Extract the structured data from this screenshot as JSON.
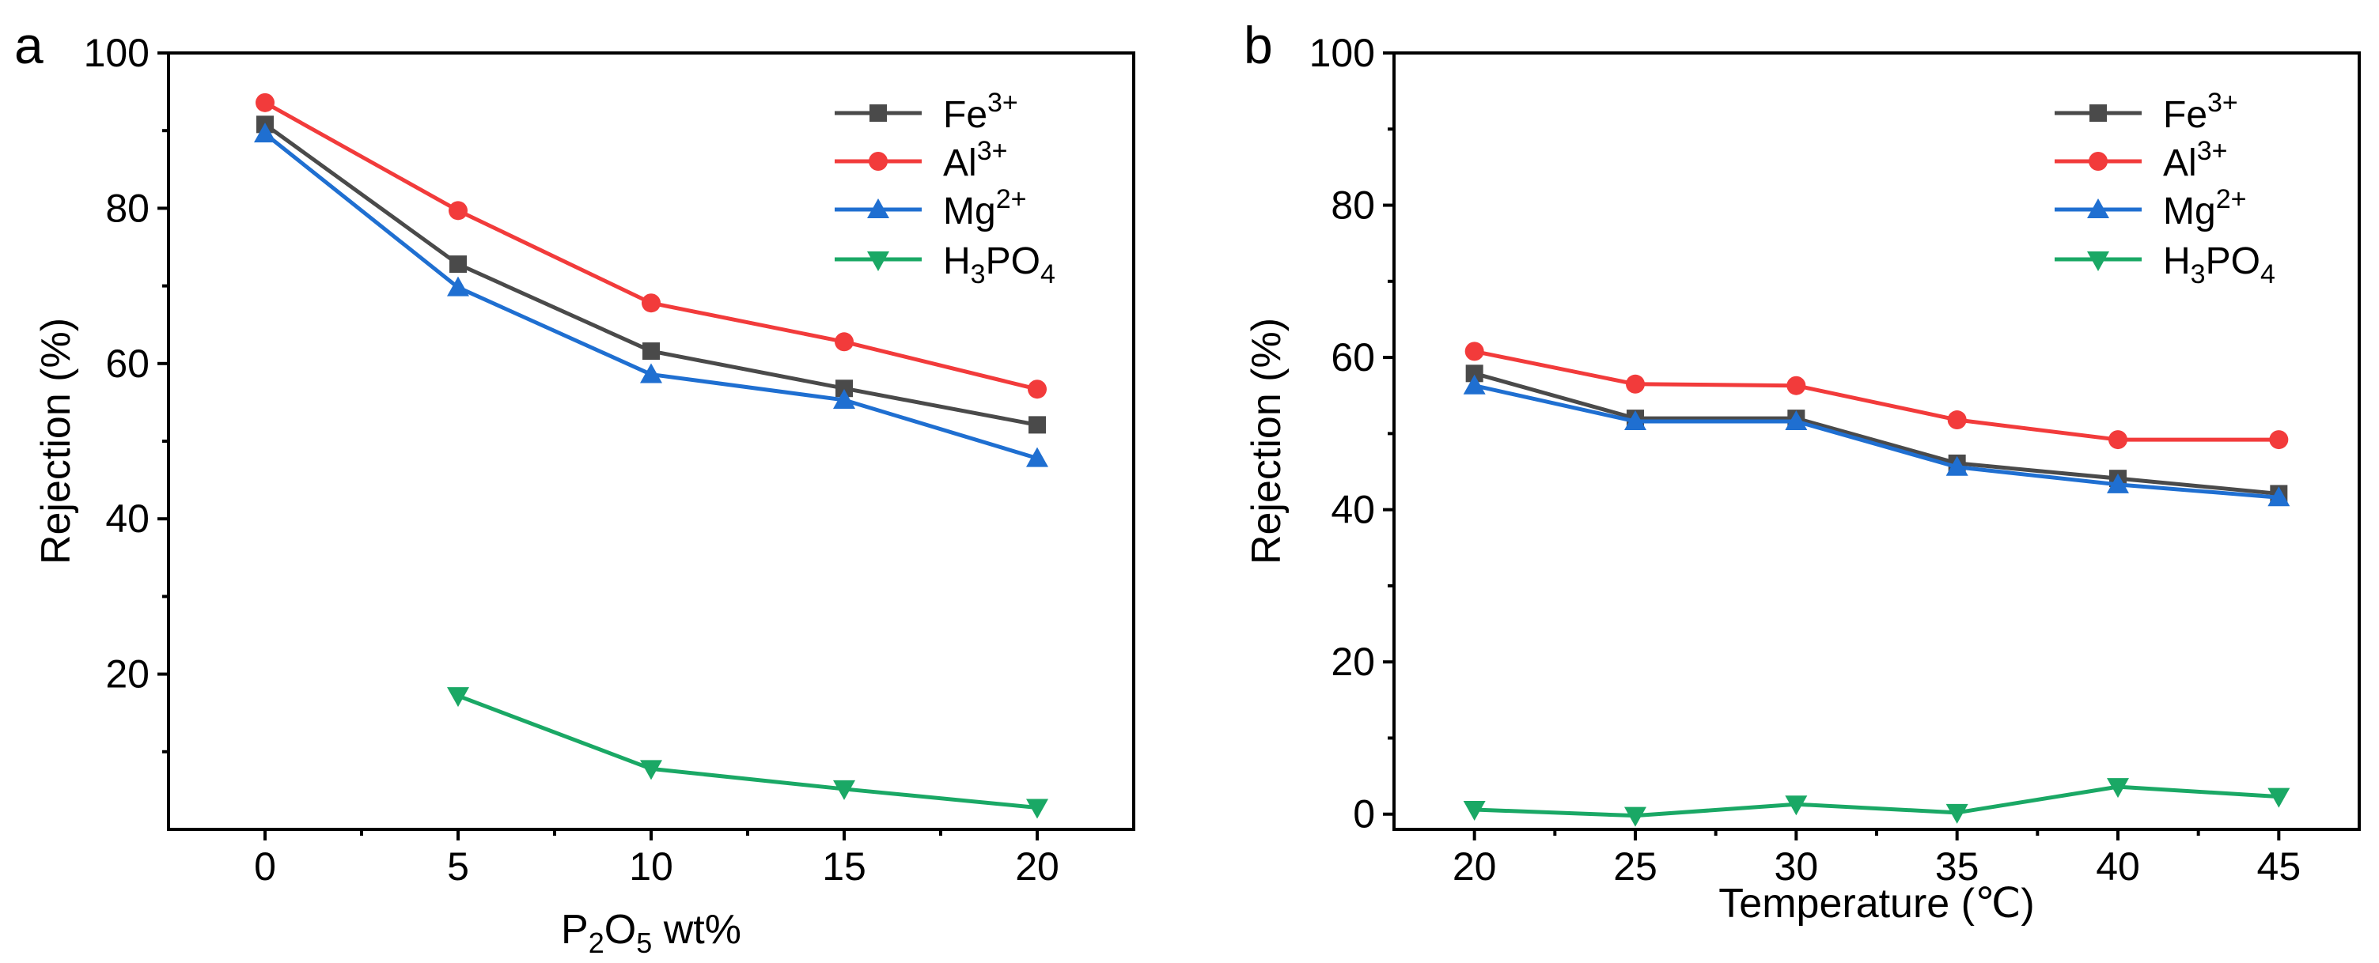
{
  "chart_data": [
    {
      "type": "line",
      "panel_label": "a",
      "xlabel": "P2O5 wt%",
      "xlabel_parts": {
        "a": "P",
        "b": "2",
        "c": "O",
        "d": "5",
        "e": " wt%"
      },
      "ylabel": "Rejection (%)",
      "xlim": [
        -2.5,
        22.5
      ],
      "ylim": [
        0,
        100
      ],
      "xticks": [
        "0",
        "5",
        "10",
        "15",
        "20"
      ],
      "yticks": [
        "20",
        "40",
        "60",
        "80",
        "100"
      ],
      "legend_position": "top-right",
      "series": [
        {
          "name": "Fe3+",
          "base": "Fe",
          "sup": "3+",
          "color": "#4a4a4a",
          "marker": "square",
          "x": [
            0,
            5,
            10,
            15,
            20
          ],
          "values": [
            90.8,
            72.8,
            61.6,
            56.8,
            52.1
          ]
        },
        {
          "name": "Al3+",
          "base": "Al",
          "sup": "3+",
          "color": "#f23b3b",
          "marker": "circle",
          "x": [
            0,
            5,
            10,
            15,
            20
          ],
          "values": [
            93.6,
            79.7,
            67.8,
            62.8,
            56.7
          ]
        },
        {
          "name": "Mg2+",
          "base": "Mg",
          "sup": "2+",
          "color": "#1f6fd1",
          "marker": "triangle-up",
          "x": [
            0,
            5,
            10,
            15,
            20
          ],
          "values": [
            89.6,
            69.8,
            58.6,
            55.3,
            47.8
          ]
        },
        {
          "name": "H3PO4",
          "a": "H",
          "b": "3",
          "c": "PO",
          "d": "4",
          "color": "#1aa865",
          "marker": "triangle-down",
          "x": [
            5,
            10,
            15,
            20
          ],
          "values": [
            17.2,
            7.8,
            5.2,
            2.8
          ]
        }
      ]
    },
    {
      "type": "line",
      "panel_label": "b",
      "xlabel": "Temperature (℃)",
      "ylabel": "Rejection (%)",
      "xlim": [
        17.5,
        47.5
      ],
      "ylim": [
        -2,
        100
      ],
      "xticks": [
        "20",
        "25",
        "30",
        "35",
        "40",
        "45"
      ],
      "yticks": [
        "0",
        "20",
        "40",
        "60",
        "80",
        "100"
      ],
      "legend_position": "top-right",
      "series": [
        {
          "name": "Fe3+",
          "base": "Fe",
          "sup": "3+",
          "color": "#4a4a4a",
          "marker": "square",
          "x": [
            20,
            25,
            30,
            35,
            40,
            45
          ],
          "values": [
            57.9,
            52.0,
            52.0,
            46.1,
            44.1,
            42.1
          ]
        },
        {
          "name": "Al3+",
          "base": "Al",
          "sup": "3+",
          "color": "#f23b3b",
          "marker": "circle",
          "x": [
            20,
            25,
            30,
            35,
            40,
            45
          ],
          "values": [
            60.8,
            56.5,
            56.3,
            51.8,
            49.2,
            49.2
          ]
        },
        {
          "name": "Mg2+",
          "base": "Mg",
          "sup": "2+",
          "color": "#1f6fd1",
          "marker": "triangle-up",
          "x": [
            20,
            25,
            30,
            35,
            40,
            45
          ],
          "values": [
            56.3,
            51.6,
            51.6,
            45.6,
            43.3,
            41.6
          ]
        },
        {
          "name": "H3PO4",
          "a": "H",
          "b": "3",
          "c": "PO",
          "d": "4",
          "color": "#1aa865",
          "marker": "triangle-down",
          "x": [
            20,
            25,
            30,
            35,
            40,
            45
          ],
          "values": [
            0.6,
            -0.2,
            1.3,
            0.2,
            3.6,
            2.3
          ]
        }
      ]
    }
  ]
}
